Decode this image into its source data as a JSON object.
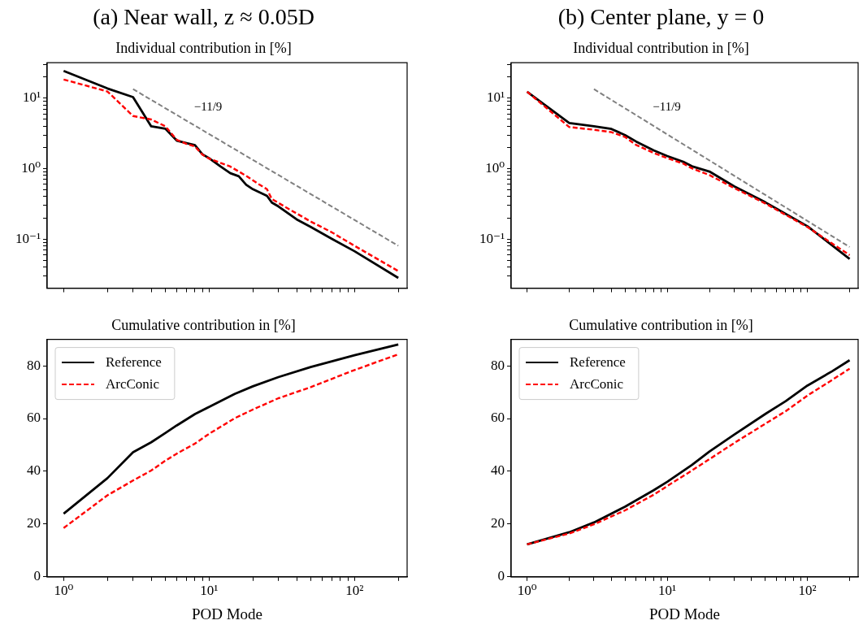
{
  "chart_data": [
    {
      "type": "line",
      "title": "(a) Near wall, z ≈ 0.05D",
      "subtitle": "Individual contribution in [%]",
      "log": "xy",
      "tick_labels": "y",
      "xlim": [
        0.77,
        230
      ],
      "ylim": [
        0.02,
        32
      ],
      "xticks": [
        {
          "value": 1,
          "label": null
        },
        {
          "value": 2,
          "label": null
        },
        {
          "value": 3,
          "label": null
        },
        {
          "value": 4,
          "label": null
        },
        {
          "value": 5,
          "label": null
        },
        {
          "value": 6,
          "label": null
        },
        {
          "value": 7,
          "label": null
        },
        {
          "value": 8,
          "label": null
        },
        {
          "value": 9,
          "label": null
        },
        {
          "value": 10,
          "label": null
        },
        {
          "value": 20,
          "label": null
        },
        {
          "value": 30,
          "label": null
        },
        {
          "value": 40,
          "label": null
        },
        {
          "value": 50,
          "label": null
        },
        {
          "value": 60,
          "label": null
        },
        {
          "value": 70,
          "label": null
        },
        {
          "value": 80,
          "label": null
        },
        {
          "value": 90,
          "label": null
        },
        {
          "value": 100,
          "label": null
        },
        {
          "value": 200,
          "label": null
        }
      ],
      "yticks": [
        {
          "value": 0.03,
          "label": null
        },
        {
          "value": 0.04,
          "label": null
        },
        {
          "value": 0.05,
          "label": null
        },
        {
          "value": 0.06,
          "label": null
        },
        {
          "value": 0.07,
          "label": null
        },
        {
          "value": 0.08,
          "label": null
        },
        {
          "value": 0.09,
          "label": null
        },
        {
          "value": 0.1,
          "label": "10⁻¹"
        },
        {
          "value": 0.2,
          "label": null
        },
        {
          "value": 0.3,
          "label": null
        },
        {
          "value": 0.4,
          "label": null
        },
        {
          "value": 0.5,
          "label": null
        },
        {
          "value": 0.6,
          "label": null
        },
        {
          "value": 0.7,
          "label": null
        },
        {
          "value": 0.8,
          "label": null
        },
        {
          "value": 0.9,
          "label": null
        },
        {
          "value": 1,
          "label": "10⁰"
        },
        {
          "value": 2,
          "label": null
        },
        {
          "value": 3,
          "label": null
        },
        {
          "value": 4,
          "label": null
        },
        {
          "value": 5,
          "label": null
        },
        {
          "value": 6,
          "label": null
        },
        {
          "value": 7,
          "label": null
        },
        {
          "value": 8,
          "label": null
        },
        {
          "value": 9,
          "label": null
        },
        {
          "value": 10,
          "label": "10¹"
        },
        {
          "value": 20,
          "label": null
        },
        {
          "value": 30,
          "label": null
        }
      ],
      "annotations": [
        "−11/9"
      ],
      "series": [
        {
          "color": "#000000",
          "x": [
            1,
            2,
            3,
            4,
            5,
            6,
            7,
            8,
            9,
            10,
            12,
            14,
            16,
            18,
            20,
            25,
            27,
            30,
            40,
            50,
            70,
            100,
            200
          ],
          "values": [
            24.5,
            13.8,
            10.4,
            4.0,
            3.7,
            2.5,
            2.3,
            2.15,
            1.6,
            1.41,
            1.07,
            0.86,
            0.78,
            0.59,
            0.51,
            0.41,
            0.33,
            0.29,
            0.19,
            0.148,
            0.1,
            0.067,
            0.028
          ]
        },
        {
          "color": "#ff0000",
          "line_style": "dashed",
          "x": [
            1,
            2,
            3,
            4,
            5,
            6,
            7,
            8,
            9,
            10,
            14,
            18,
            22,
            25,
            27,
            35,
            50,
            70,
            100,
            200
          ],
          "values": [
            18.5,
            12.5,
            5.6,
            5.0,
            4.0,
            2.57,
            2.25,
            2.06,
            1.58,
            1.39,
            1.07,
            0.79,
            0.6,
            0.51,
            0.37,
            0.27,
            0.177,
            0.124,
            0.08,
            0.035
          ]
        },
        {
          "color": "#808080",
          "line_style": "dashed",
          "x": [
            3,
            200
          ],
          "values": [
            13.5,
            0.08
          ]
        }
      ]
    },
    {
      "type": "line",
      "title": "(b) Center plane, y = 0",
      "subtitle": "Individual contribution in [%]",
      "log": "xy",
      "tick_labels": "y",
      "xlim": [
        0.77,
        230
      ],
      "ylim": [
        0.02,
        32
      ],
      "xticks": [
        {
          "value": 1,
          "label": null
        },
        {
          "value": 2,
          "label": null
        },
        {
          "value": 3,
          "label": null
        },
        {
          "value": 4,
          "label": null
        },
        {
          "value": 5,
          "label": null
        },
        {
          "value": 6,
          "label": null
        },
        {
          "value": 7,
          "label": null
        },
        {
          "value": 8,
          "label": null
        },
        {
          "value": 9,
          "label": null
        },
        {
          "value": 10,
          "label": null
        },
        {
          "value": 20,
          "label": null
        },
        {
          "value": 30,
          "label": null
        },
        {
          "value": 40,
          "label": null
        },
        {
          "value": 50,
          "label": null
        },
        {
          "value": 60,
          "label": null
        },
        {
          "value": 70,
          "label": null
        },
        {
          "value": 80,
          "label": null
        },
        {
          "value": 90,
          "label": null
        },
        {
          "value": 100,
          "label": null
        },
        {
          "value": 200,
          "label": null
        }
      ],
      "yticks": [
        {
          "value": 0.03,
          "label": null
        },
        {
          "value": 0.04,
          "label": null
        },
        {
          "value": 0.05,
          "label": null
        },
        {
          "value": 0.06,
          "label": null
        },
        {
          "value": 0.07,
          "label": null
        },
        {
          "value": 0.08,
          "label": null
        },
        {
          "value": 0.09,
          "label": null
        },
        {
          "value": 0.1,
          "label": "10⁻¹"
        },
        {
          "value": 0.2,
          "label": null
        },
        {
          "value": 0.3,
          "label": null
        },
        {
          "value": 0.4,
          "label": null
        },
        {
          "value": 0.5,
          "label": null
        },
        {
          "value": 0.6,
          "label": null
        },
        {
          "value": 0.7,
          "label": null
        },
        {
          "value": 0.8,
          "label": null
        },
        {
          "value": 0.9,
          "label": null
        },
        {
          "value": 1,
          "label": "10⁰"
        },
        {
          "value": 2,
          "label": null
        },
        {
          "value": 3,
          "label": null
        },
        {
          "value": 4,
          "label": null
        },
        {
          "value": 5,
          "label": null
        },
        {
          "value": 6,
          "label": null
        },
        {
          "value": 7,
          "label": null
        },
        {
          "value": 8,
          "label": null
        },
        {
          "value": 9,
          "label": null
        },
        {
          "value": 10,
          "label": "10¹"
        },
        {
          "value": 20,
          "label": null
        },
        {
          "value": 30,
          "label": null
        }
      ],
      "annotations": [
        "−11/9"
      ],
      "series": [
        {
          "color": "#000000",
          "x": [
            1,
            2,
            3,
            4,
            5,
            6,
            8,
            10,
            13,
            15,
            20,
            30,
            50,
            100,
            200
          ],
          "values": [
            12.4,
            4.45,
            4.0,
            3.66,
            3.0,
            2.43,
            1.82,
            1.51,
            1.25,
            1.08,
            0.91,
            0.56,
            0.333,
            0.152,
            0.052
          ]
        },
        {
          "color": "#ff0000",
          "line_style": "dashed",
          "x": [
            1,
            2,
            3,
            4,
            5,
            6,
            8,
            10,
            13,
            15,
            20,
            30,
            50,
            100,
            200
          ],
          "values": [
            12.4,
            3.9,
            3.57,
            3.3,
            2.82,
            2.17,
            1.67,
            1.41,
            1.18,
            1.01,
            0.81,
            0.53,
            0.32,
            0.148,
            0.059
          ]
        },
        {
          "color": "#808080",
          "line_style": "dashed",
          "x": [
            3,
            200
          ],
          "values": [
            13.5,
            0.077
          ]
        }
      ]
    },
    {
      "type": "line",
      "subtitle": "Cumulative contribution in [%]",
      "xlabel": "POD Mode",
      "log": "x",
      "legend": "top left",
      "xlim": [
        0.77,
        230
      ],
      "ylim": [
        0,
        90
      ],
      "yticks": [
        0,
        20,
        40,
        60,
        80
      ],
      "xticks": [
        {
          "value": 1,
          "label": "10⁰"
        },
        {
          "value": 2,
          "label": null
        },
        {
          "value": 3,
          "label": null
        },
        {
          "value": 4,
          "label": null
        },
        {
          "value": 5,
          "label": null
        },
        {
          "value": 6,
          "label": null
        },
        {
          "value": 7,
          "label": null
        },
        {
          "value": 8,
          "label": null
        },
        {
          "value": 9,
          "label": null
        },
        {
          "value": 10,
          "label": "10¹"
        },
        {
          "value": 20,
          "label": null
        },
        {
          "value": 30,
          "label": null
        },
        {
          "value": 40,
          "label": null
        },
        {
          "value": 50,
          "label": null
        },
        {
          "value": 60,
          "label": null
        },
        {
          "value": 70,
          "label": null
        },
        {
          "value": 80,
          "label": null
        },
        {
          "value": 90,
          "label": null
        },
        {
          "value": 100,
          "label": "10²"
        },
        {
          "value": 200,
          "label": null
        }
      ],
      "series": [
        {
          "name": "Reference",
          "color": "#000000",
          "x": [
            1,
            2,
            3,
            4,
            5,
            6,
            8,
            10,
            15,
            20,
            30,
            50,
            100,
            200
          ],
          "values": [
            23.9,
            37.4,
            47.2,
            51.0,
            54.5,
            57.4,
            61.7,
            64.4,
            69.3,
            72.2,
            75.7,
            79.5,
            84.0,
            88.1
          ]
        },
        {
          "name": "ArcConic",
          "color": "#ff0000",
          "line_style": "dashed",
          "x": [
            1,
            2,
            3,
            4,
            5,
            6,
            8,
            10,
            15,
            20,
            30,
            50,
            100,
            200
          ],
          "values": [
            18.5,
            30.9,
            36.5,
            40.3,
            44.0,
            46.7,
            50.5,
            54.2,
            60.1,
            63.4,
            67.7,
            71.9,
            78.4,
            84.3
          ]
        }
      ]
    },
    {
      "type": "line",
      "subtitle": "Cumulative contribution in [%]",
      "xlabel": "POD Mode",
      "log": "x",
      "legend": "top left",
      "xlim": [
        0.77,
        230
      ],
      "ylim": [
        0,
        90
      ],
      "yticks": [
        0,
        20,
        40,
        60,
        80
      ],
      "xticks": [
        {
          "value": 1,
          "label": "10⁰"
        },
        {
          "value": 2,
          "label": null
        },
        {
          "value": 3,
          "label": null
        },
        {
          "value": 4,
          "label": null
        },
        {
          "value": 5,
          "label": null
        },
        {
          "value": 6,
          "label": null
        },
        {
          "value": 7,
          "label": null
        },
        {
          "value": 8,
          "label": null
        },
        {
          "value": 9,
          "label": null
        },
        {
          "value": 10,
          "label": "10¹"
        },
        {
          "value": 20,
          "label": null
        },
        {
          "value": 30,
          "label": null
        },
        {
          "value": 40,
          "label": null
        },
        {
          "value": 50,
          "label": null
        },
        {
          "value": 60,
          "label": null
        },
        {
          "value": 70,
          "label": null
        },
        {
          "value": 80,
          "label": null
        },
        {
          "value": 90,
          "label": null
        },
        {
          "value": 100,
          "label": "10²"
        },
        {
          "value": 200,
          "label": null
        }
      ],
      "series": [
        {
          "name": "Reference",
          "color": "#000000",
          "x": [
            1,
            2,
            3,
            5,
            8,
            10,
            15,
            20,
            30,
            50,
            70,
            100,
            150,
            200
          ],
          "values": [
            12.3,
            16.9,
            20.6,
            26.6,
            32.8,
            36.0,
            42.4,
            47.5,
            53.9,
            61.7,
            66.6,
            72.5,
            77.9,
            82.1
          ]
        },
        {
          "name": "ArcConic",
          "color": "#ff0000",
          "line_style": "dashed",
          "x": [
            1,
            2,
            3,
            5,
            8,
            10,
            15,
            20,
            30,
            50,
            70,
            100,
            150,
            200
          ],
          "values": [
            12.3,
            16.4,
            19.9,
            25.2,
            31.1,
            34.4,
            40.3,
            44.6,
            50.7,
            58.0,
            62.8,
            68.7,
            74.6,
            78.9
          ]
        }
      ]
    }
  ]
}
